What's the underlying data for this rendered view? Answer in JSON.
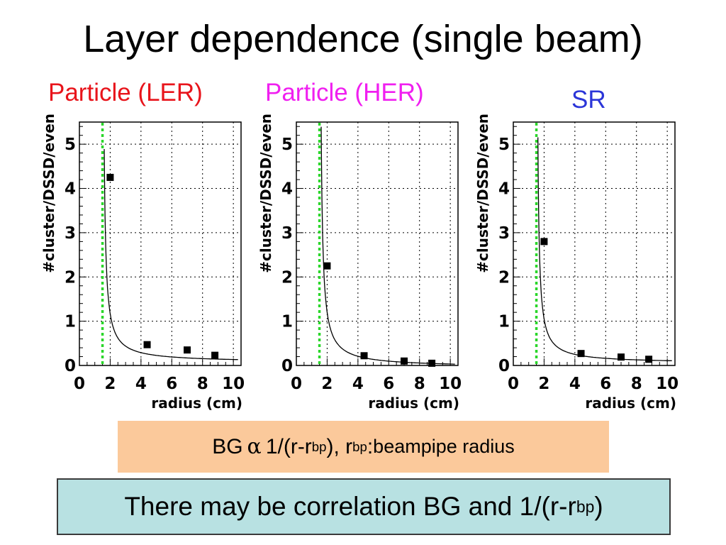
{
  "title": "Layer dependence (single beam)",
  "panels": [
    {
      "label": "Particle (LER)",
      "label_color": "#e8141b"
    },
    {
      "label": "Particle (HER)",
      "label_color": "#f01ff0"
    },
    {
      "label": "SR",
      "label_color": "#2b35d8"
    }
  ],
  "formula": {
    "prefix": "BG",
    "alpha": "α",
    "expr": "1/(r-r",
    "sub1": "bp",
    "mid": "), r",
    "sub2": "bp",
    "colon": ":",
    "desc": " beampipe radius"
  },
  "conclusion": {
    "text": "There may be correlation BG and 1/(r-r",
    "sub": "bp",
    "close": ")"
  },
  "chart_data": [
    {
      "type": "scatter",
      "title": "Particle (LER)",
      "xlabel": "radius (cm)",
      "ylabel": "#cluster/DSSD/even",
      "xlim": [
        0,
        10.5
      ],
      "ylim": [
        0,
        5.5
      ],
      "xticks": [
        "0",
        "2",
        "4",
        "6",
        "8",
        "10"
      ],
      "yticks": [
        "0",
        "1",
        "2",
        "3",
        "4",
        "5"
      ],
      "grid": true,
      "beampipe_radius": 1.5,
      "x": [
        2.0,
        4.4,
        7.0,
        8.8
      ],
      "values": [
        4.25,
        0.47,
        0.35,
        0.23
      ],
      "fit_curve": {
        "form": "a/(r-rbp)+c",
        "a": 0.55,
        "c": 0.07,
        "rbp": 1.5
      }
    },
    {
      "type": "scatter",
      "title": "Particle (HER)",
      "xlabel": "radius (cm)",
      "ylabel": "#cluster/DSSD/even",
      "xlim": [
        0,
        10.5
      ],
      "ylim": [
        0,
        5.5
      ],
      "xticks": [
        "0",
        "2",
        "4",
        "6",
        "8",
        "10"
      ],
      "yticks": [
        "0",
        "1",
        "2",
        "3",
        "4",
        "5"
      ],
      "grid": true,
      "beampipe_radius": 1.5,
      "x": [
        2.0,
        4.4,
        7.0,
        8.8
      ],
      "values": [
        2.25,
        0.22,
        0.1,
        0.05
      ],
      "fit_curve": {
        "form": "a/(r-rbp)+c",
        "a": 0.62,
        "c": -0.04,
        "rbp": 1.5
      }
    },
    {
      "type": "scatter",
      "title": "SR",
      "xlabel": "radius (cm)",
      "ylabel": "#cluster/DSSD/even",
      "xlim": [
        0,
        10.5
      ],
      "ylim": [
        0,
        5.5
      ],
      "xticks": [
        "0",
        "2",
        "4",
        "6",
        "8",
        "10"
      ],
      "yticks": [
        "0",
        "1",
        "2",
        "3",
        "4",
        "5"
      ],
      "grid": true,
      "beampipe_radius": 1.5,
      "x": [
        2.0,
        4.4,
        7.0,
        8.8
      ],
      "values": [
        2.8,
        0.27,
        0.19,
        0.14
      ],
      "fit_curve": {
        "form": "a/(r-rbp)+c",
        "a": 0.5,
        "c": 0.05,
        "rbp": 1.5
      }
    }
  ]
}
